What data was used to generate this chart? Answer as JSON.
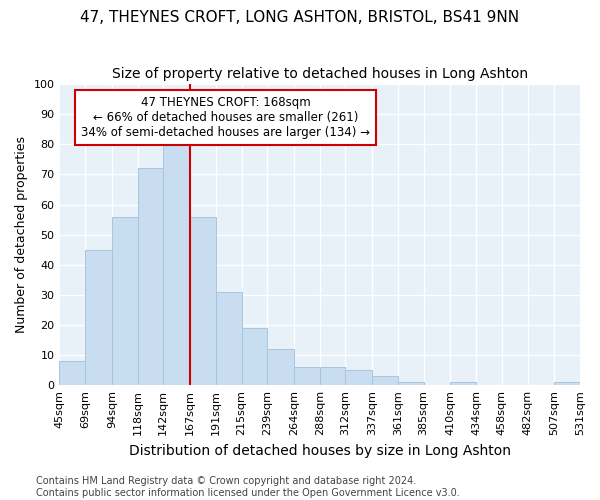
{
  "title": "47, THEYNES CROFT, LONG ASHTON, BRISTOL, BS41 9NN",
  "subtitle": "Size of property relative to detached houses in Long Ashton",
  "xlabel": "Distribution of detached houses by size in Long Ashton",
  "ylabel": "Number of detached properties",
  "bar_color": "#c8ddf0",
  "bar_edgecolor": "#a8c4e0",
  "vline_x": 167,
  "vline_color": "#cc0000",
  "annotation_line1": "47 THEYNES CROFT: 168sqm",
  "annotation_line2": "← 66% of detached houses are smaller (261)",
  "annotation_line3": "34% of semi-detached houses are larger (134) →",
  "annotation_box_color": "white",
  "annotation_box_edgecolor": "#cc0000",
  "footnote": "Contains HM Land Registry data © Crown copyright and database right 2024.\nContains public sector information licensed under the Open Government Licence v3.0.",
  "bins": [
    45,
    69,
    94,
    118,
    142,
    167,
    191,
    215,
    239,
    264,
    288,
    312,
    337,
    361,
    385,
    410,
    434,
    458,
    482,
    507,
    531
  ],
  "values": [
    8,
    45,
    56,
    72,
    80,
    56,
    31,
    19,
    12,
    6,
    6,
    5,
    3,
    1,
    0,
    1,
    0,
    0,
    0,
    1
  ],
  "ylim": [
    0,
    100
  ],
  "background_color": "#e8f0f8",
  "grid_color": "white",
  "title_fontsize": 11,
  "subtitle_fontsize": 10,
  "xlabel_fontsize": 10,
  "ylabel_fontsize": 9,
  "tick_fontsize": 8,
  "footnote_fontsize": 7
}
